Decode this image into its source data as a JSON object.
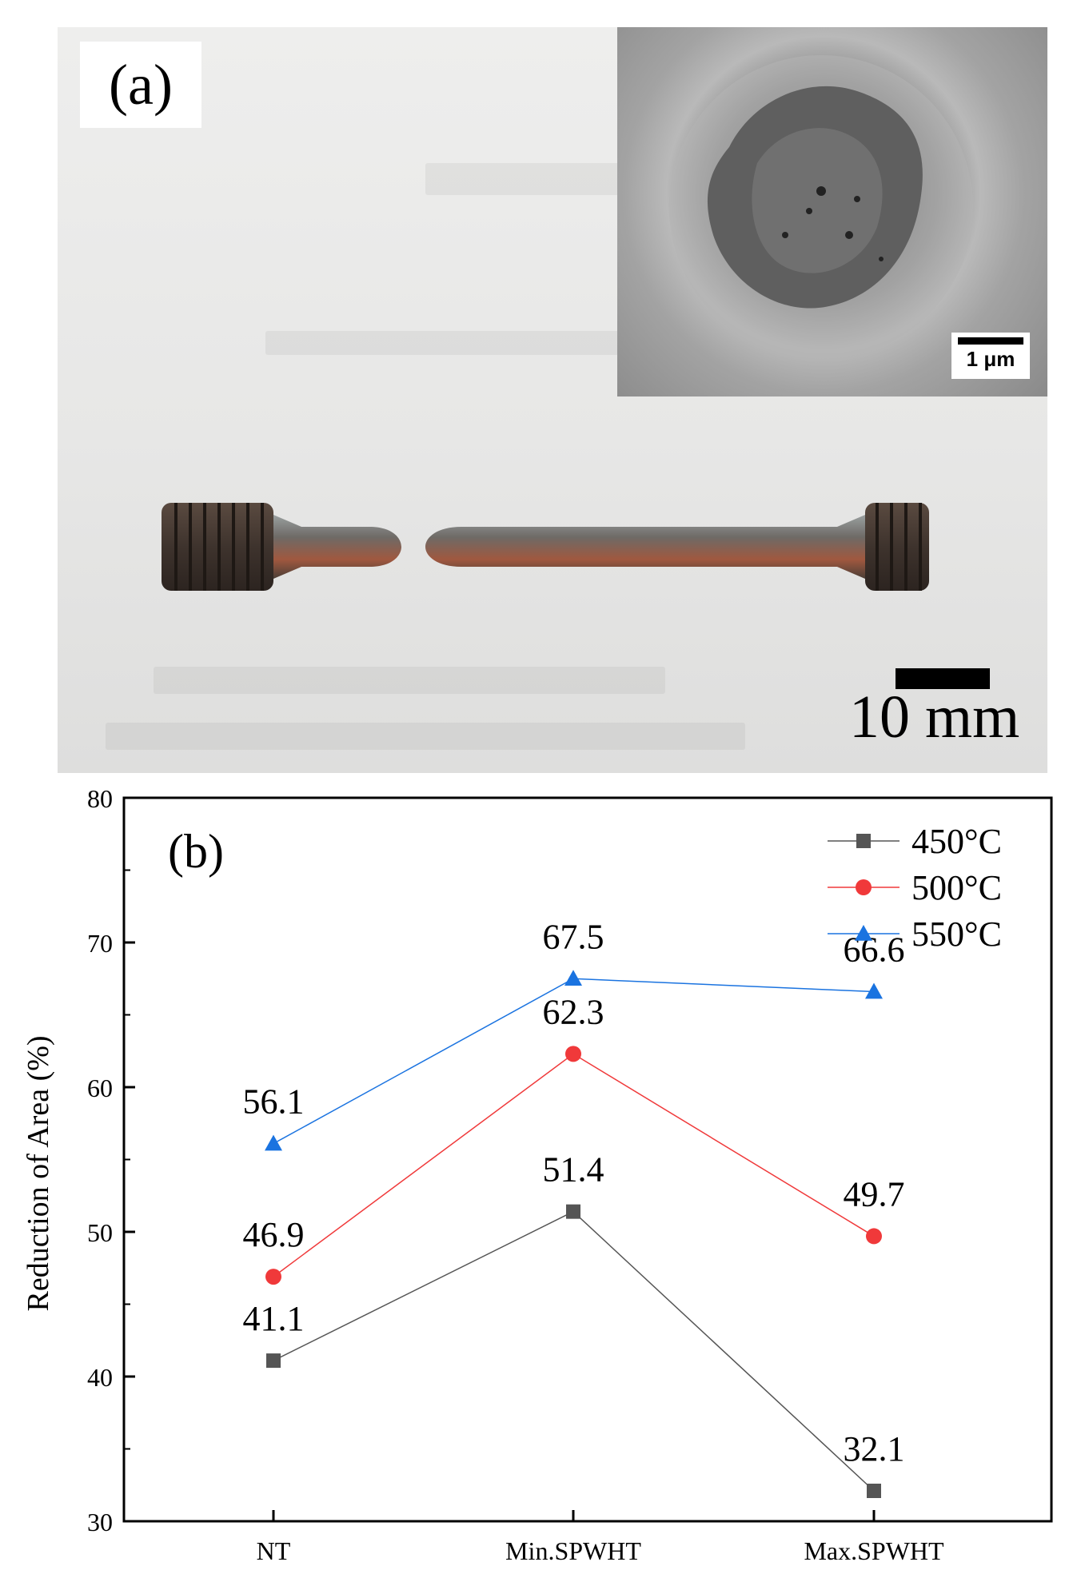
{
  "panel_a": {
    "label": "(a)",
    "inset_scale_label": "1 μm",
    "photo_scale_label": "10 mm"
  },
  "chart_data": {
    "type": "line",
    "panel_label": "(b)",
    "categories": [
      "NT",
      "Min.SPWHT",
      "Max.SPWHT"
    ],
    "xlabel": "",
    "ylabel": "Reduction of Area (%)",
    "ylim": [
      30,
      80
    ],
    "yticks": [
      30,
      40,
      50,
      60,
      70,
      80
    ],
    "grid": false,
    "legend_position": "top-right",
    "series": [
      {
        "name": "450°C",
        "color": "#555555",
        "marker": "square",
        "values": [
          41.1,
          51.4,
          32.1
        ],
        "labels": [
          "41.1",
          "51.4",
          "32.1"
        ]
      },
      {
        "name": "500°C",
        "color": "#f0393a",
        "marker": "circle",
        "values": [
          46.9,
          62.3,
          49.7
        ],
        "labels": [
          "46.9",
          "62.3",
          "49.7"
        ]
      },
      {
        "name": "550°C",
        "color": "#1a73e0",
        "marker": "triangle",
        "values": [
          56.1,
          67.5,
          66.6
        ],
        "labels": [
          "56.1",
          "67.5",
          "66.6"
        ]
      }
    ]
  }
}
